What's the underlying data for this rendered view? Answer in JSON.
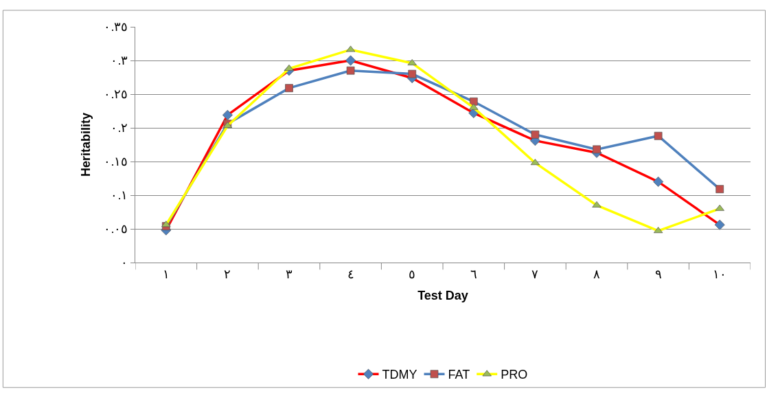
{
  "chart_data": {
    "type": "line",
    "xlabel": "Test Day",
    "ylabel": "Heritability",
    "categories": [
      "١",
      "٢",
      "٣",
      "٤",
      "٥",
      "٦",
      "٧",
      "٨",
      "٩",
      "١٠"
    ],
    "series": [
      {
        "name": "TDMY",
        "color": "#ff0000",
        "marker": "diamond",
        "colors": [
          "#4f81bd",
          "#4f81bd",
          "#4f81bd",
          "#4f81bd",
          "#4f81bd",
          "#4f81bd",
          "#4f81bd",
          "#4f81bd",
          "#4f81bd",
          "#4f81bd"
        ],
        "values": [
          0.048,
          0.219,
          0.285,
          0.3,
          0.274,
          0.222,
          0.181,
          0.163,
          0.12,
          0.056
        ]
      },
      {
        "name": "FAT",
        "color": "#4f81bd",
        "marker": "square",
        "colors": [
          "#c0504d",
          "#c0504d",
          "#c0504d",
          "#c0504d",
          "#c0504d",
          "#c0504d",
          "#c0504d",
          "#c0504d",
          "#c0504d",
          "#c0504d"
        ],
        "values": [
          0.054,
          0.206,
          0.259,
          0.285,
          0.28,
          0.239,
          0.19,
          0.168,
          0.188,
          0.109
        ]
      },
      {
        "name": "PRO",
        "color": "#ffff00",
        "marker": "triangle",
        "colors": [
          "#9bbb59",
          "#9bbb59",
          "#9bbb59",
          "#9bbb59",
          "#9bbb59",
          "#9bbb59",
          "#9bbb59",
          "#9bbb59",
          "#9bbb59",
          "#9bbb59"
        ],
        "values": [
          0.056,
          0.203,
          0.288,
          0.316,
          0.296,
          0.23,
          0.148,
          0.085,
          0.047,
          0.08
        ]
      }
    ],
    "ylim": [
      0,
      0.35
    ],
    "yticks": [
      {
        "value": 0,
        "label": "٠"
      },
      {
        "value": 0.05,
        "label": "٠.٠٥"
      },
      {
        "value": 0.1,
        "label": "٠.١"
      },
      {
        "value": 0.15,
        "label": "٠.١٥"
      },
      {
        "value": 0.2,
        "label": "٠.٢"
      },
      {
        "value": 0.25,
        "label": "٠.٢٥"
      },
      {
        "value": 0.3,
        "label": "٠.٣"
      },
      {
        "value": 0.35,
        "label": "٠.٣٥"
      }
    ],
    "grid": "y",
    "legend": "bottom",
    "line_style": "solid"
  }
}
